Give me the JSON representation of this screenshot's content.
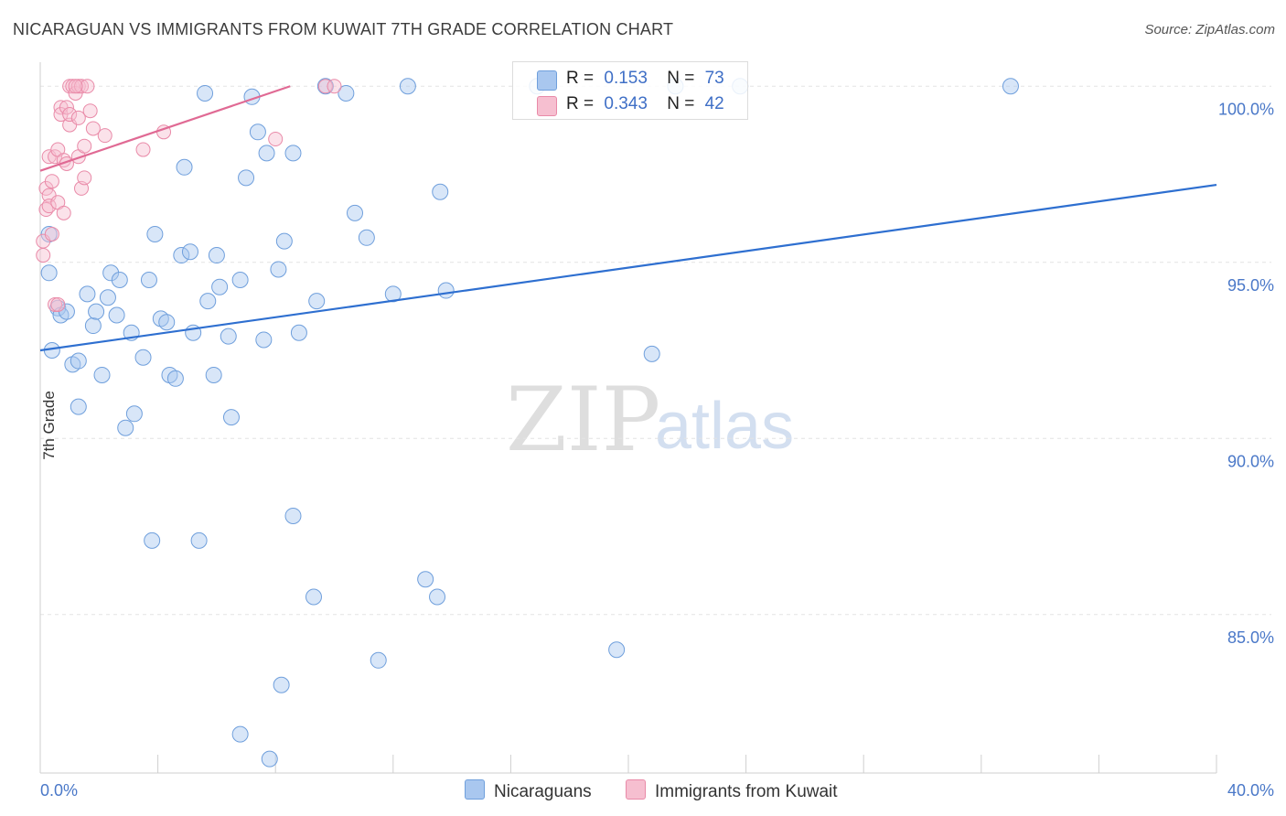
{
  "title": "NICARAGUAN VS IMMIGRANTS FROM KUWAIT 7TH GRADE CORRELATION CHART",
  "source": "Source: ZipAtlas.com",
  "watermark": {
    "zip": "ZIP",
    "atlas": "atlas"
  },
  "legend": {
    "r_label": "R =",
    "n_label": "N =",
    "series": [
      {
        "name": "Nicaraguans",
        "r": "0.153",
        "n": "73",
        "fill": "#a9c7ef",
        "stroke": "#6f9fdc",
        "line": "#2e6fd0"
      },
      {
        "name": "Immigrants from Kuwait",
        "r": "0.343",
        "n": "42",
        "fill": "#f6bfd0",
        "stroke": "#e98aa8",
        "line": "#e06a94"
      }
    ]
  },
  "chart_data": {
    "type": "scatter",
    "title": "NICARAGUAN VS IMMIGRANTS FROM KUWAIT 7TH GRADE CORRELATION CHART",
    "xlabel": "",
    "ylabel": "7th Grade",
    "xlim": [
      0,
      40
    ],
    "ylim": [
      80.5,
      100.5
    ],
    "x_tick_labels": [
      "0.0%",
      "40.0%"
    ],
    "y_ticks": [
      85,
      90,
      95,
      100
    ],
    "y_tick_labels": [
      "85.0%",
      "90.0%",
      "95.0%",
      "100.0%"
    ],
    "series": [
      {
        "name": "Nicaraguans",
        "trend": {
          "x": [
            0,
            40
          ],
          "y": [
            92.5,
            97.2
          ]
        },
        "points": [
          [
            0.3,
            95.8
          ],
          [
            0.3,
            94.7
          ],
          [
            0.4,
            92.5
          ],
          [
            0.6,
            93.7
          ],
          [
            0.7,
            93.5
          ],
          [
            0.9,
            93.6
          ],
          [
            1.1,
            92.1
          ],
          [
            1.3,
            92.2
          ],
          [
            1.3,
            90.9
          ],
          [
            1.6,
            94.1
          ],
          [
            1.8,
            93.2
          ],
          [
            1.9,
            93.6
          ],
          [
            2.1,
            91.8
          ],
          [
            2.3,
            94.0
          ],
          [
            2.4,
            94.7
          ],
          [
            2.6,
            93.5
          ],
          [
            2.7,
            94.5
          ],
          [
            2.9,
            90.3
          ],
          [
            3.1,
            93.0
          ],
          [
            3.2,
            90.7
          ],
          [
            3.5,
            92.3
          ],
          [
            3.7,
            94.5
          ],
          [
            3.8,
            87.1
          ],
          [
            3.9,
            95.8
          ],
          [
            4.1,
            93.4
          ],
          [
            4.3,
            93.3
          ],
          [
            4.4,
            91.8
          ],
          [
            4.6,
            91.7
          ],
          [
            4.8,
            95.2
          ],
          [
            4.9,
            97.7
          ],
          [
            5.1,
            95.3
          ],
          [
            5.2,
            93.0
          ],
          [
            5.4,
            87.1
          ],
          [
            5.6,
            99.8
          ],
          [
            5.7,
            93.9
          ],
          [
            5.9,
            91.8
          ],
          [
            6.0,
            95.2
          ],
          [
            6.1,
            94.3
          ],
          [
            6.4,
            92.9
          ],
          [
            6.5,
            90.6
          ],
          [
            6.8,
            81.6
          ],
          [
            6.8,
            94.5
          ],
          [
            7.0,
            97.4
          ],
          [
            7.2,
            99.7
          ],
          [
            7.4,
            98.7
          ],
          [
            7.6,
            92.8
          ],
          [
            7.7,
            98.1
          ],
          [
            7.8,
            80.9
          ],
          [
            8.1,
            94.8
          ],
          [
            8.2,
            83.0
          ],
          [
            8.3,
            95.6
          ],
          [
            8.6,
            98.1
          ],
          [
            8.6,
            87.8
          ],
          [
            8.8,
            93.0
          ],
          [
            9.3,
            85.5
          ],
          [
            9.4,
            93.9
          ],
          [
            9.7,
            100.0
          ],
          [
            10.4,
            99.8
          ],
          [
            10.7,
            96.4
          ],
          [
            11.1,
            95.7
          ],
          [
            11.5,
            83.7
          ],
          [
            12.0,
            94.1
          ],
          [
            12.5,
            100.0
          ],
          [
            13.1,
            86.0
          ],
          [
            13.5,
            85.5
          ],
          [
            13.6,
            97.0
          ],
          [
            13.8,
            94.2
          ],
          [
            16.9,
            100.0
          ],
          [
            19.6,
            84.0
          ],
          [
            20.8,
            92.4
          ],
          [
            21.6,
            100.0
          ],
          [
            23.8,
            100.0
          ],
          [
            33.0,
            100.0
          ]
        ]
      },
      {
        "name": "Immigrants from Kuwait",
        "trend": {
          "x": [
            0,
            8.5
          ],
          "y": [
            97.6,
            100.0
          ]
        },
        "points": [
          [
            0.1,
            95.6
          ],
          [
            0.1,
            95.2
          ],
          [
            0.2,
            96.5
          ],
          [
            0.2,
            97.1
          ],
          [
            0.3,
            96.9
          ],
          [
            0.3,
            98.0
          ],
          [
            0.3,
            96.6
          ],
          [
            0.4,
            97.3
          ],
          [
            0.4,
            95.8
          ],
          [
            0.5,
            98.0
          ],
          [
            0.5,
            93.8
          ],
          [
            0.6,
            98.2
          ],
          [
            0.6,
            96.7
          ],
          [
            0.6,
            93.8
          ],
          [
            0.7,
            99.4
          ],
          [
            0.7,
            99.2
          ],
          [
            0.8,
            96.4
          ],
          [
            0.8,
            97.9
          ],
          [
            0.9,
            97.8
          ],
          [
            0.9,
            99.4
          ],
          [
            1.0,
            98.9
          ],
          [
            1.0,
            99.2
          ],
          [
            1.0,
            100.0
          ],
          [
            1.1,
            100.0
          ],
          [
            1.2,
            99.8
          ],
          [
            1.3,
            98.0
          ],
          [
            1.3,
            99.1
          ],
          [
            1.3,
            100.0
          ],
          [
            1.4,
            100.0
          ],
          [
            1.4,
            97.1
          ],
          [
            1.5,
            97.4
          ],
          [
            1.5,
            98.3
          ],
          [
            1.6,
            100.0
          ],
          [
            1.7,
            99.3
          ],
          [
            1.8,
            98.8
          ],
          [
            2.2,
            98.6
          ],
          [
            3.5,
            98.2
          ],
          [
            4.2,
            98.7
          ],
          [
            8.0,
            98.5
          ],
          [
            9.7,
            100.0
          ],
          [
            10.0,
            100.0
          ],
          [
            1.2,
            100.0
          ]
        ]
      }
    ]
  }
}
